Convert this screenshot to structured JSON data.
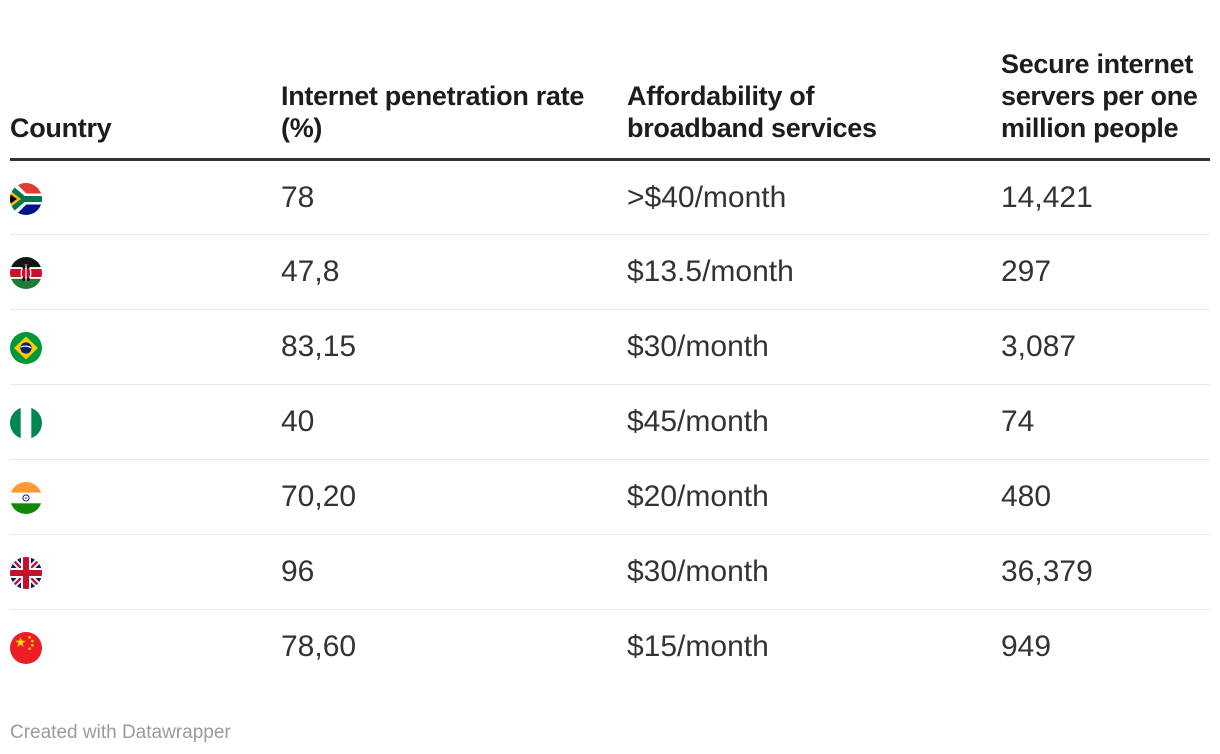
{
  "chart_data": {
    "type": "table",
    "title": "",
    "columns": [
      {
        "id": "country",
        "label": "Country"
      },
      {
        "id": "penetration",
        "label": "Internet penetration rate (%)"
      },
      {
        "id": "affordability",
        "label": "Affordability of broadband services"
      },
      {
        "id": "servers",
        "label": "Secure internet servers per one million people"
      }
    ],
    "rows": [
      {
        "flag_icon": "flag-south-africa-icon",
        "penetration": "78",
        "affordability": ">$40/month",
        "servers": "14,421"
      },
      {
        "flag_icon": "flag-kenya-icon",
        "penetration": "47,8",
        "affordability": "$13.5/month",
        "servers": "297"
      },
      {
        "flag_icon": "flag-brazil-icon",
        "penetration": "83,15",
        "affordability": "$30/month",
        "servers": "3,087"
      },
      {
        "flag_icon": "flag-nigeria-icon",
        "penetration": "40",
        "affordability": "$45/month",
        "servers": "74"
      },
      {
        "flag_icon": "flag-india-icon",
        "penetration": "70,20",
        "affordability": "$20/month",
        "servers": "480"
      },
      {
        "flag_icon": "flag-united-kingdom-icon",
        "penetration": "96",
        "affordability": "$30/month",
        "servers": "36,379"
      },
      {
        "flag_icon": "flag-china-icon",
        "penetration": "78,60",
        "affordability": "$15/month",
        "servers": "949"
      }
    ],
    "layout_hints": {
      "grid": "horizontal-row-dividers",
      "header_rule": true,
      "legend": "none"
    }
  },
  "footer": {
    "attribution": "Created with Datawrapper"
  },
  "colors": {
    "header_text": "#1D1D1D",
    "body_text": "#333333",
    "header_rule": "#333333",
    "row_divider": "#E9E9E9",
    "attribution_text": "#9B9B9B"
  }
}
